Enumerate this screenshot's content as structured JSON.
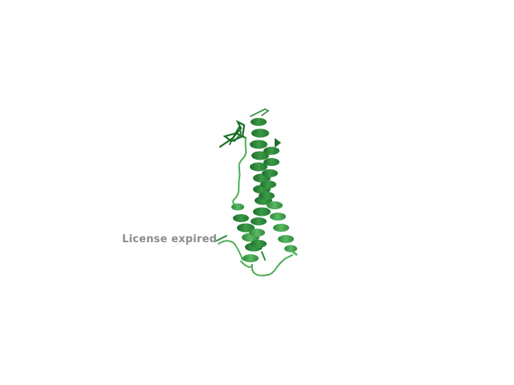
{
  "viewer": {
    "license_notice": "License expired",
    "background": "#ffffff",
    "cartoon_colors": {
      "dark": "#1c6e2a",
      "mid": "#2f8a3c",
      "light": "#4fae5a",
      "notice_text": "#8c8c8c"
    }
  }
}
